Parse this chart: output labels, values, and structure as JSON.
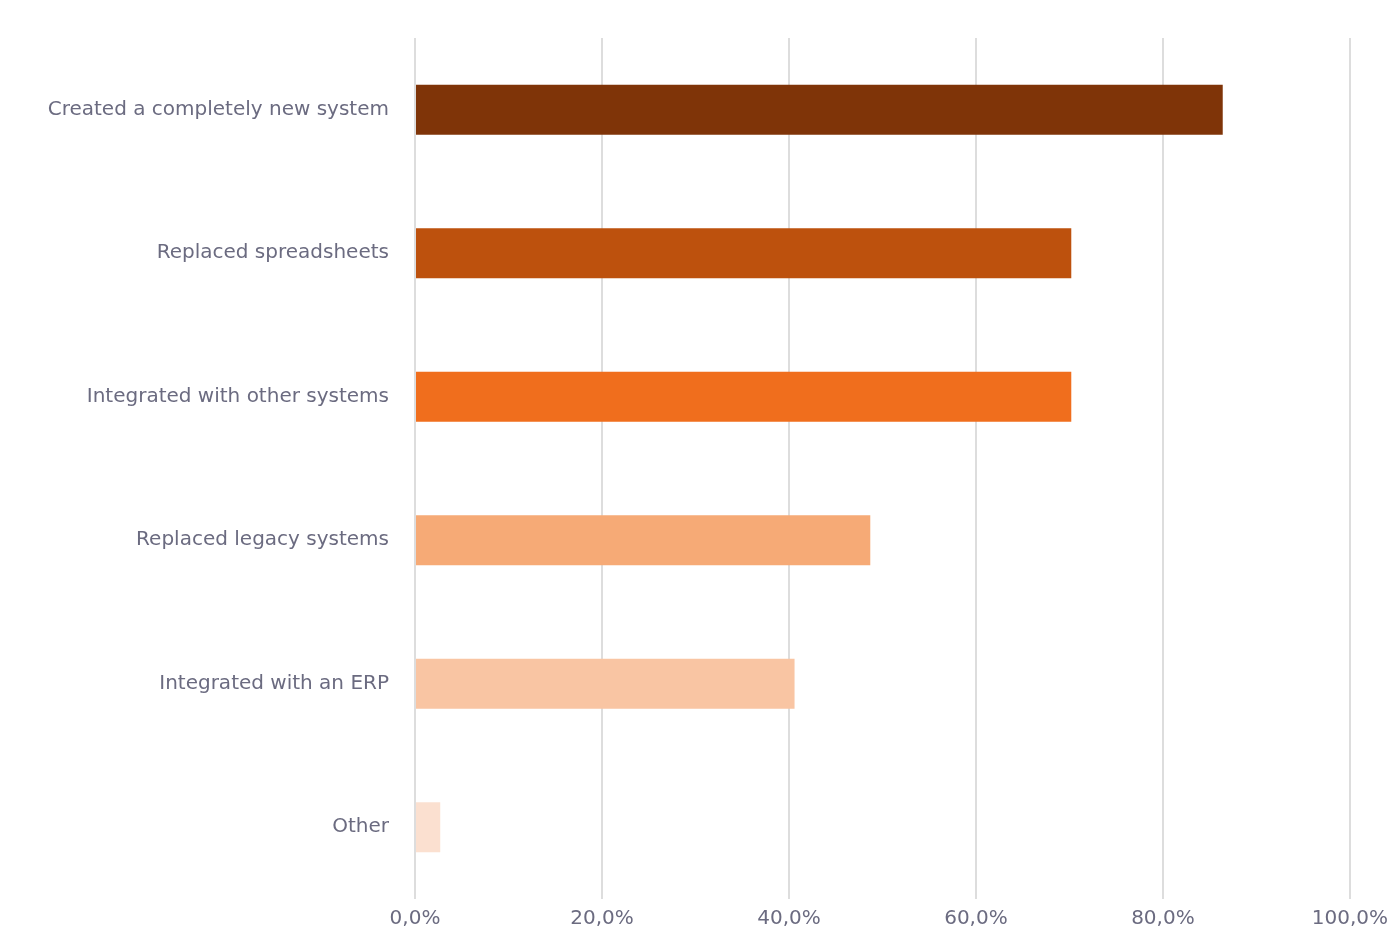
{
  "chart_data": {
    "type": "bar",
    "orientation": "horizontal",
    "categories": [
      "Created a completely new system",
      "Replaced spreadsheets",
      "Integrated with other systems",
      "Replaced legacy systems",
      "Integrated with an ERP",
      "Other"
    ],
    "values": [
      86.4,
      70.2,
      70.2,
      48.7,
      40.6,
      2.7
    ],
    "colors": [
      "#7f3408",
      "#bd510d",
      "#f06e1d",
      "#f6aa76",
      "#f9c5a3",
      "#fbe0d0"
    ],
    "xlim": [
      0,
      100
    ],
    "xticks": [
      {
        "value": 0,
        "label": "0,0%"
      },
      {
        "value": 20,
        "label": "20,0%"
      },
      {
        "value": 40,
        "label": "40,0%"
      },
      {
        "value": 60,
        "label": "60,0%"
      },
      {
        "value": 80,
        "label": "80,0%"
      },
      {
        "value": 100,
        "label": "100,0%"
      }
    ],
    "grid": "x",
    "legend": false
  }
}
